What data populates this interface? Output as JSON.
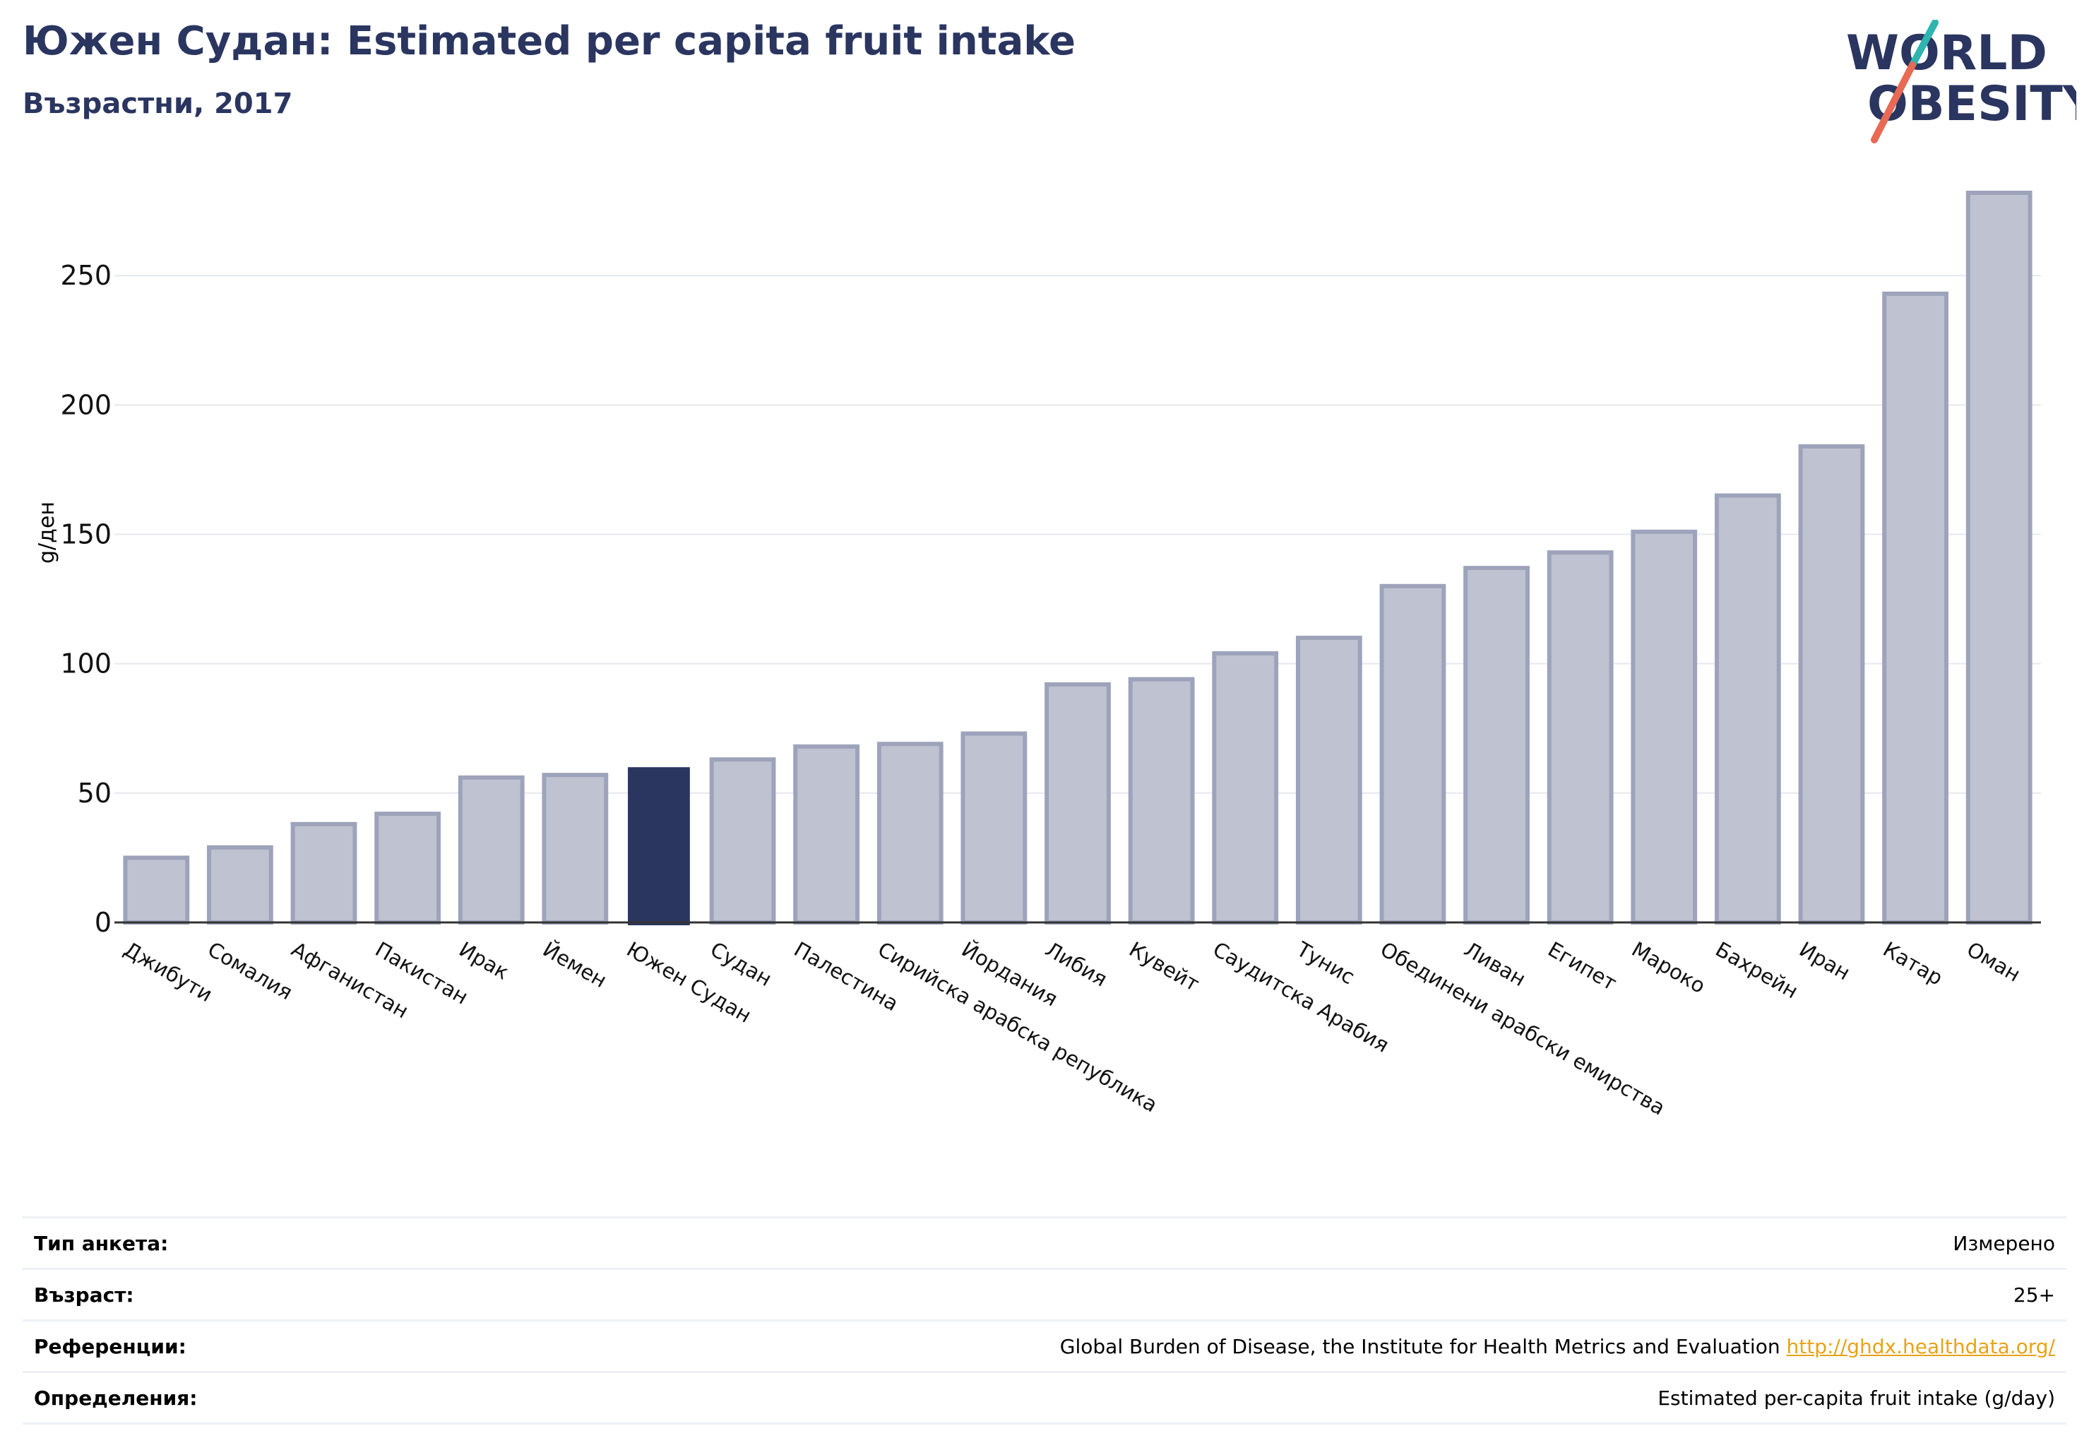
{
  "header": {
    "title": "Южен Судан: Estimated per capita fruit intake",
    "subtitle": "Възрастни, 2017"
  },
  "logo": {
    "line1": "WORLD",
    "line2": "OBESITY",
    "accent_teal": "#2fb4b0",
    "accent_coral": "#e86a55",
    "text_color": "#2a3560"
  },
  "chart_data": {
    "type": "bar",
    "ylabel": "g/ден",
    "ylim": [
      0,
      285
    ],
    "yticks": [
      0,
      50,
      100,
      150,
      200,
      250
    ],
    "grid": true,
    "categories": [
      "Джибути",
      "Сомалия",
      "Афганистан",
      "Пакистан",
      "Ирак",
      "Йемен",
      "Южен Судан",
      "Судан",
      "Палестина",
      "Сирийска арабска република",
      "Йордания",
      "Либия",
      "Кувейт",
      "Саудитска Арабия",
      "Тунис",
      "Обединени арабски емирства",
      "Ливан",
      "Египет",
      "Мароко",
      "Бахрейн",
      "Иран",
      "Катар",
      "Оман"
    ],
    "values": [
      25,
      29,
      38,
      42,
      56,
      57,
      60,
      63,
      68,
      69,
      73,
      92,
      94,
      104,
      110,
      130,
      137,
      143,
      151,
      165,
      184,
      243,
      282
    ],
    "highlight": "Южен Судан",
    "colors": {
      "bar": "#bfc2d0",
      "bar_edge": "#9da3ba",
      "highlight": "#2a3560"
    }
  },
  "meta": [
    {
      "label": "Тип анкета:",
      "value": "Измерено"
    },
    {
      "label": "Възраст:",
      "value": "25+"
    },
    {
      "label": "Референции:",
      "value": "Global Burden of Disease, the Institute for Health Metrics and Evaluation",
      "link": "http://ghdx.healthdata.org/"
    },
    {
      "label": "Определения:",
      "value": "Estimated per-capita fruit intake (g/day)"
    }
  ]
}
